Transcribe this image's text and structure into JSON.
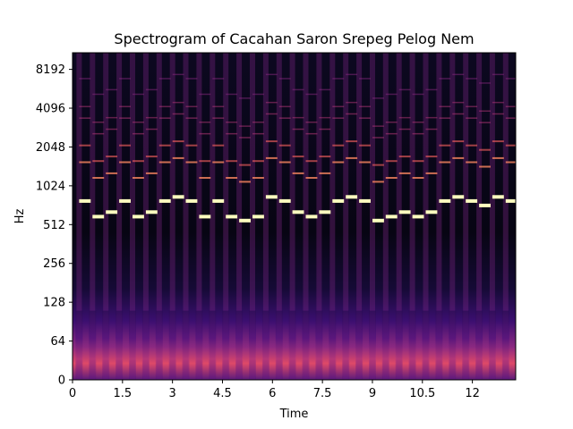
{
  "chart_data": {
    "type": "heatmap",
    "title": "Spectrogram of Cacahan Saron Srepeg Pelog Nem",
    "xlabel": "Time",
    "ylabel": "Hz",
    "x_ticks": [
      "0",
      "1.5",
      "3",
      "4.5",
      "6",
      "7.5",
      "9",
      "10.5",
      "12"
    ],
    "x_tick_values": [
      0,
      1.5,
      3,
      4.5,
      6,
      7.5,
      9,
      10.5,
      12
    ],
    "y_ticks": [
      "0",
      "64",
      "128",
      "256",
      "512",
      "1024",
      "2048",
      "4096",
      "8192"
    ],
    "y_tick_values": [
      0,
      64,
      128,
      256,
      512,
      1024,
      2048,
      4096,
      8192
    ],
    "xlim": [
      0,
      13.3
    ],
    "ylim": [
      0,
      11025
    ],
    "y_scale": "symlog",
    "colormap": "magma",
    "note_onsets": [
      0.2,
      0.6,
      1.0,
      1.4,
      1.8,
      2.2,
      2.6,
      3.0,
      3.4,
      3.8,
      4.2,
      4.6,
      5.0,
      5.4,
      5.8,
      6.2,
      6.6,
      7.0,
      7.4,
      7.8,
      8.2,
      8.6,
      9.0,
      9.4,
      9.8,
      10.2,
      10.6,
      11.0,
      11.4,
      11.8,
      12.2,
      12.6,
      13.0
    ],
    "note_fundamentals_hz": [
      780,
      590,
      640,
      780,
      590,
      640,
      780,
      840,
      780,
      590,
      780,
      590,
      550,
      590,
      840,
      780,
      640,
      590,
      640,
      780,
      840,
      780,
      550,
      590,
      640,
      590,
      640,
      780,
      840,
      780,
      720,
      840,
      780
    ]
  }
}
